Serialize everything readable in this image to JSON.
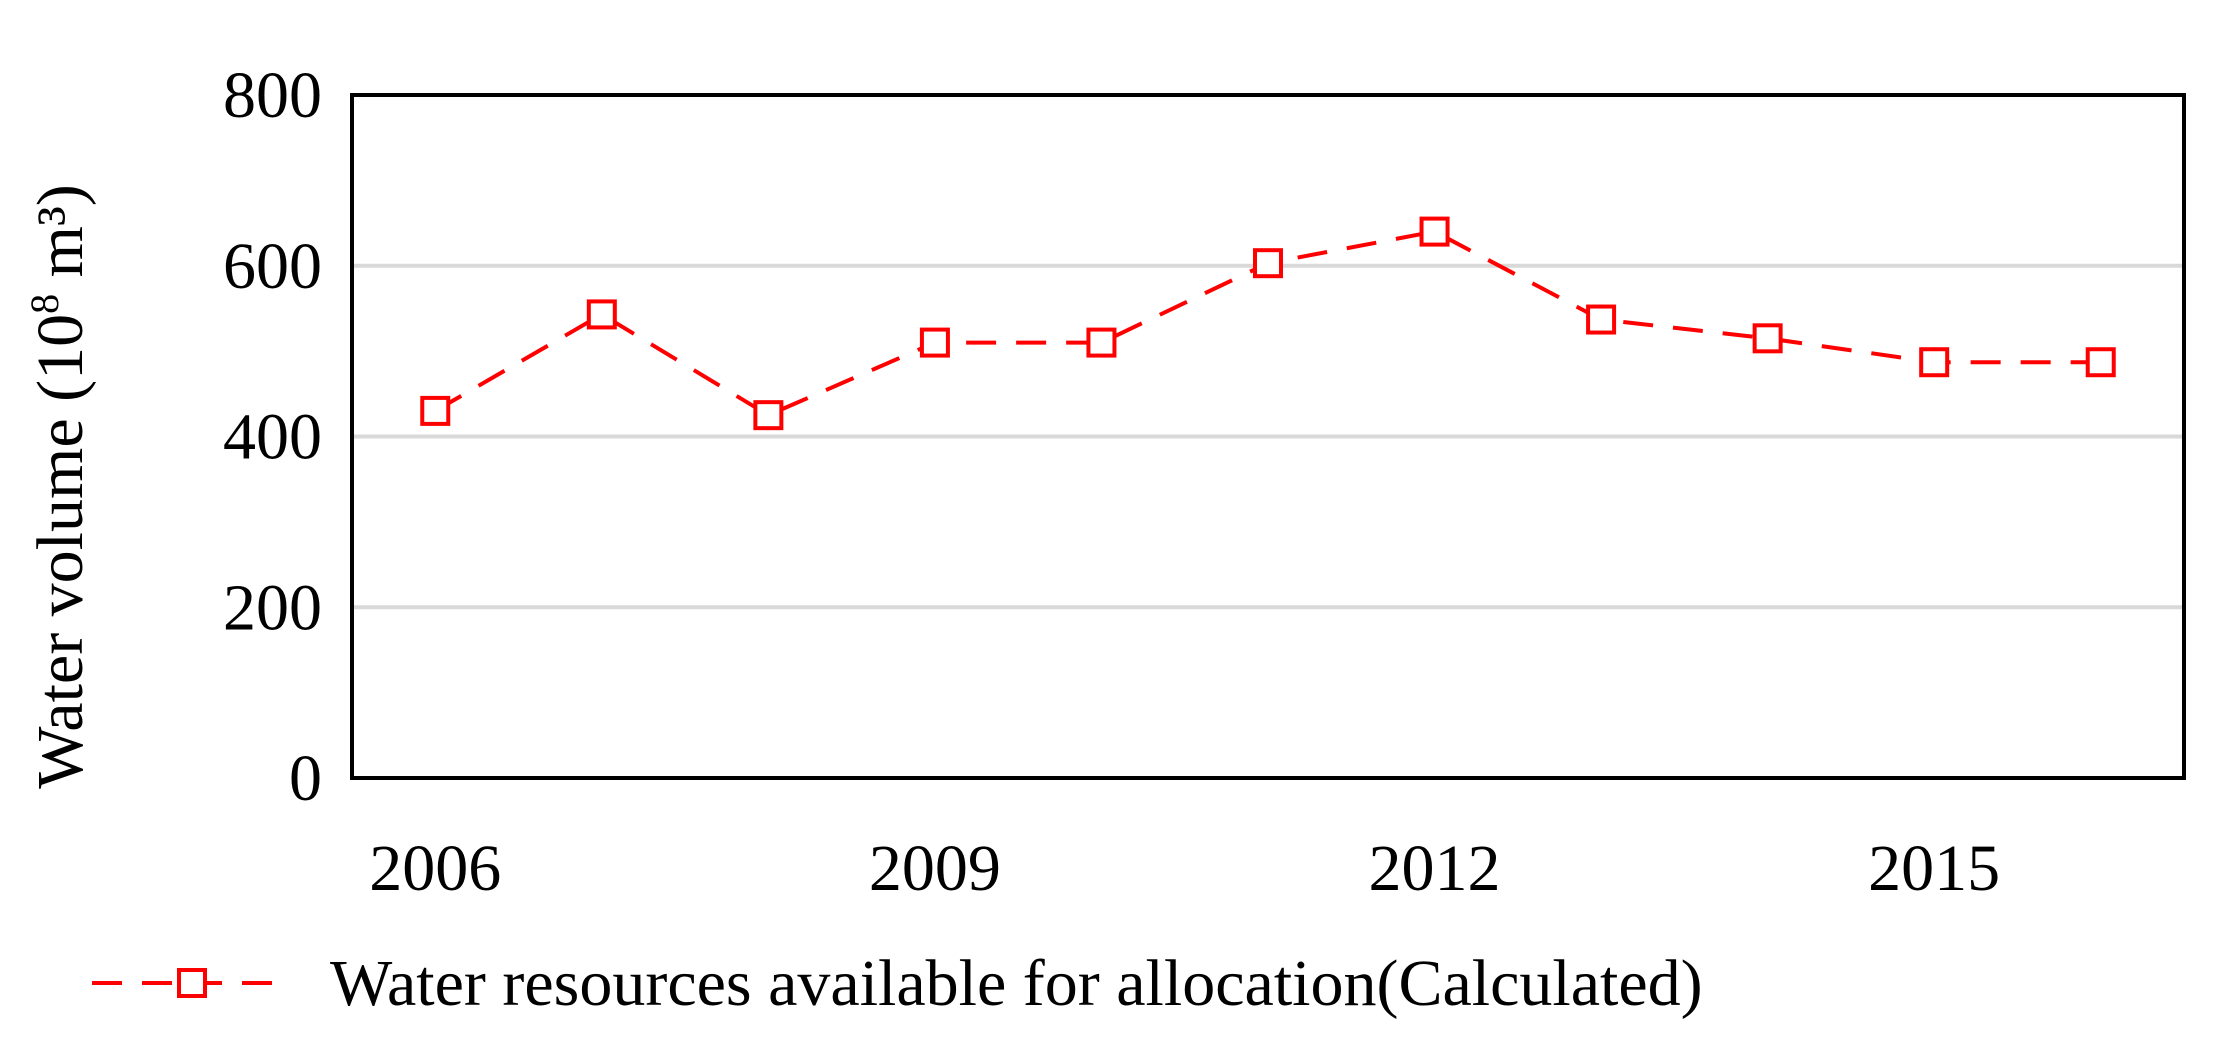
{
  "chart_data": {
    "type": "line",
    "title": "",
    "xlabel": "",
    "ylabel": {
      "prefix": "Water volume (10",
      "superscript": "8",
      "suffix": " m³)"
    },
    "x": [
      2006,
      2007,
      2008,
      2009,
      2010,
      2011,
      2012,
      2013,
      2014,
      2015,
      2016
    ],
    "xlim": [
      2005.5,
      2016.5
    ],
    "xtick_labels": [
      "2006",
      "2009",
      "2012",
      "2015"
    ],
    "ylim": [
      0,
      800
    ],
    "ytick_labels": [
      "0",
      "200",
      "400",
      "600",
      "800"
    ],
    "grid": "horizontal",
    "legend_position": "bottom",
    "series": [
      {
        "name": "Water resources available for allocation(Calculated)",
        "values": [
          430,
          543,
          425,
          510,
          510,
          603,
          640,
          537,
          515,
          487,
          487
        ],
        "color": "#ff0000",
        "line_style": "dashed",
        "marker": "open-square"
      }
    ]
  }
}
